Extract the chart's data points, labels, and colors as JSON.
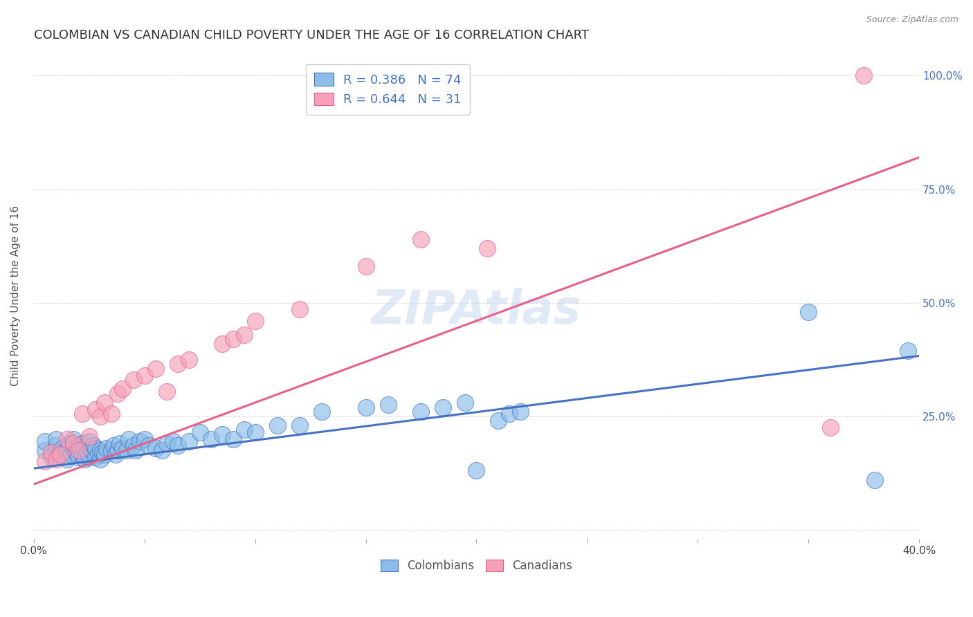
{
  "title": "COLOMBIAN VS CANADIAN CHILD POVERTY UNDER THE AGE OF 16 CORRELATION CHART",
  "source": "Source: ZipAtlas.com",
  "ylabel": "Child Poverty Under the Age of 16",
  "xlabel": "",
  "xlim": [
    0.0,
    0.4
  ],
  "ylim": [
    -0.02,
    1.05
  ],
  "xticks": [
    0.0,
    0.05,
    0.1,
    0.15,
    0.2,
    0.25,
    0.3,
    0.35,
    0.4
  ],
  "ytick_positions": [
    0.0,
    0.25,
    0.5,
    0.75,
    1.0
  ],
  "ytick_labels": [
    "",
    "25.0%",
    "50.0%",
    "75.0%",
    "100.0%"
  ],
  "blue_color": "#8BBDE8",
  "blue_line_color": "#4472C4",
  "pink_color": "#F4A0B8",
  "pink_line_color": "#E8608A",
  "legend_text_color": "#4472C4",
  "R_blue": 0.386,
  "N_blue": 74,
  "R_pink": 0.644,
  "N_pink": 31,
  "blue_intercept": 0.135,
  "blue_slope": 0.62,
  "pink_intercept": 0.1,
  "pink_slope": 1.8,
  "blue_scatter_x": [
    0.005,
    0.005,
    0.008,
    0.01,
    0.01,
    0.012,
    0.013,
    0.015,
    0.015,
    0.016,
    0.017,
    0.018,
    0.018,
    0.019,
    0.02,
    0.02,
    0.021,
    0.022,
    0.022,
    0.023,
    0.023,
    0.024,
    0.025,
    0.025,
    0.026,
    0.027,
    0.028,
    0.028,
    0.029,
    0.03,
    0.03,
    0.031,
    0.032,
    0.033,
    0.035,
    0.036,
    0.037,
    0.038,
    0.039,
    0.04,
    0.042,
    0.043,
    0.045,
    0.046,
    0.048,
    0.05,
    0.052,
    0.055,
    0.058,
    0.06,
    0.063,
    0.065,
    0.07,
    0.075,
    0.08,
    0.085,
    0.09,
    0.095,
    0.1,
    0.11,
    0.12,
    0.13,
    0.15,
    0.16,
    0.175,
    0.185,
    0.195,
    0.2,
    0.21,
    0.215,
    0.22,
    0.35,
    0.38,
    0.395
  ],
  "blue_scatter_y": [
    0.175,
    0.195,
    0.16,
    0.185,
    0.2,
    0.17,
    0.18,
    0.155,
    0.175,
    0.19,
    0.165,
    0.18,
    0.2,
    0.17,
    0.16,
    0.185,
    0.175,
    0.165,
    0.19,
    0.155,
    0.18,
    0.17,
    0.16,
    0.195,
    0.175,
    0.185,
    0.16,
    0.18,
    0.165,
    0.155,
    0.175,
    0.17,
    0.165,
    0.18,
    0.175,
    0.185,
    0.165,
    0.175,
    0.19,
    0.18,
    0.175,
    0.2,
    0.185,
    0.175,
    0.195,
    0.2,
    0.185,
    0.18,
    0.175,
    0.19,
    0.195,
    0.185,
    0.195,
    0.215,
    0.2,
    0.21,
    0.2,
    0.22,
    0.215,
    0.23,
    0.23,
    0.26,
    0.27,
    0.275,
    0.26,
    0.27,
    0.28,
    0.13,
    0.24,
    0.255,
    0.26,
    0.48,
    0.11,
    0.395
  ],
  "pink_scatter_x": [
    0.005,
    0.008,
    0.01,
    0.012,
    0.015,
    0.018,
    0.02,
    0.022,
    0.025,
    0.028,
    0.03,
    0.032,
    0.035,
    0.038,
    0.04,
    0.045,
    0.05,
    0.055,
    0.06,
    0.065,
    0.07,
    0.085,
    0.09,
    0.095,
    0.1,
    0.12,
    0.15,
    0.175,
    0.205,
    0.36,
    0.375
  ],
  "pink_scatter_y": [
    0.15,
    0.17,
    0.155,
    0.165,
    0.2,
    0.19,
    0.175,
    0.255,
    0.205,
    0.265,
    0.25,
    0.28,
    0.255,
    0.3,
    0.31,
    0.33,
    0.34,
    0.355,
    0.305,
    0.365,
    0.375,
    0.41,
    0.42,
    0.43,
    0.46,
    0.485,
    0.58,
    0.64,
    0.62,
    0.225,
    1.0
  ],
  "background_color": "#ffffff",
  "grid_color": "#dddddd",
  "watermark": "ZIPAtlas",
  "title_fontsize": 13,
  "axis_label_fontsize": 11,
  "tick_fontsize": 11
}
